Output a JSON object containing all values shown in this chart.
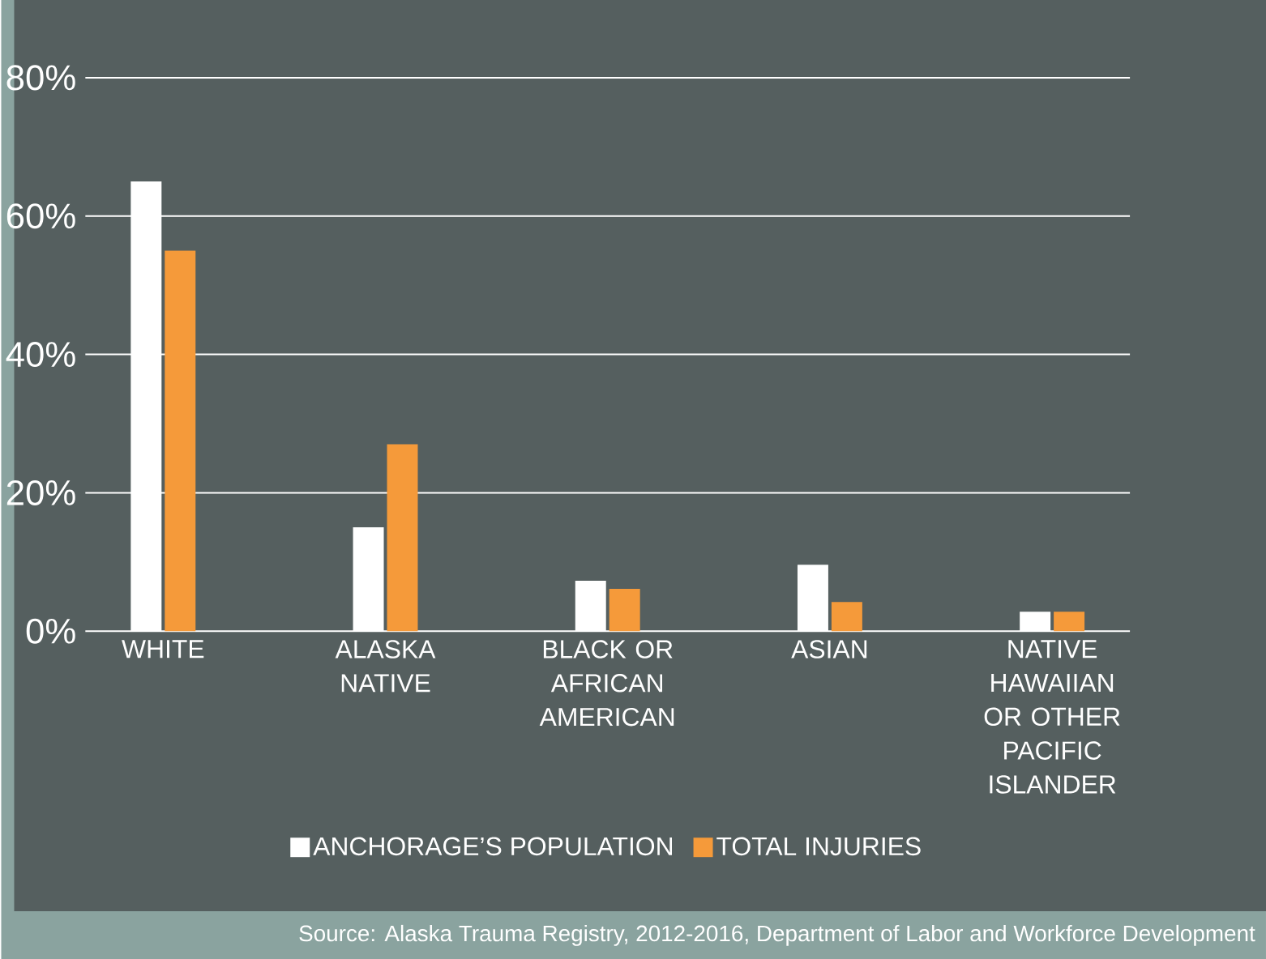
{
  "chart_data": {
    "type": "bar",
    "categories": [
      "WHITE",
      "ALASKA NATIVE",
      "BLACK OR AFRICAN AMERICAN",
      "ASIAN",
      "NATIVE HAWAIIAN OR OTHER PACIFIC ISLANDER"
    ],
    "series": [
      {
        "name": "ANCHORAGE’S POPULATION",
        "color": "#ffffff",
        "values": [
          65,
          15,
          7.3,
          9.6,
          2.8
        ]
      },
      {
        "name": "TOTAL INJURIES",
        "color": "#f59a3a",
        "values": [
          55,
          27,
          6.1,
          4.2,
          2.8
        ]
      }
    ],
    "ylim": [
      0,
      80
    ],
    "yticks": [
      {
        "value": 0,
        "label": "0%"
      },
      {
        "value": 20,
        "label": "20%"
      },
      {
        "value": 40,
        "label": "40%"
      },
      {
        "value": 60,
        "label": "60%"
      },
      {
        "value": 80,
        "label": "80%"
      }
    ],
    "grid": "y",
    "legend": "bottom",
    "annotations": [
      "Source: Alaska Trauma Registry, 2012-2016, Department of Labor and Workforce Development"
    ]
  }
}
